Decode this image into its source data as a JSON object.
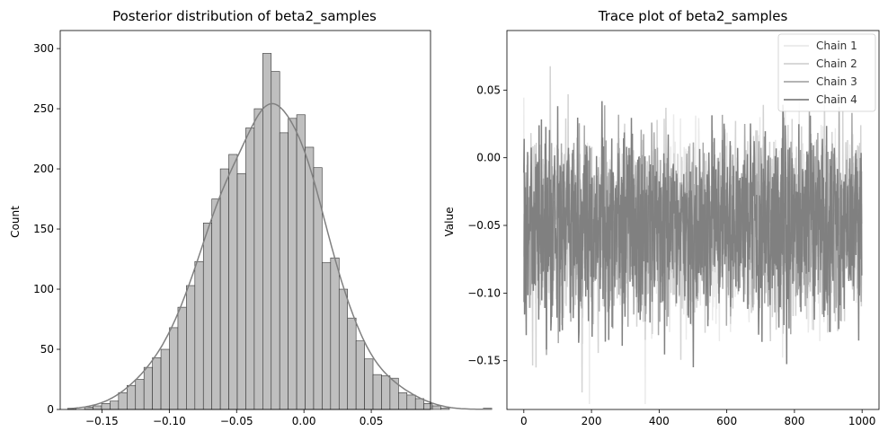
{
  "chart_data": [
    {
      "type": "bar",
      "title": "Posterior distribution of beta2_samples",
      "xlabel": "",
      "ylabel": "Count",
      "xlim": [
        -0.181,
        0.094
      ],
      "ylim": [
        0,
        315
      ],
      "xticks": [
        -0.15,
        -0.1,
        -0.05,
        0.0,
        0.05
      ],
      "xtick_labels": [
        "−0.15",
        "−0.10",
        "−0.05",
        "0.00",
        "0.05"
      ],
      "yticks": [
        0,
        50,
        100,
        150,
        200,
        250,
        300
      ],
      "ytick_labels": [
        "0",
        "50",
        "100",
        "150",
        "200",
        "250",
        "300"
      ],
      "bin_start": -0.1755,
      "bin_width": 0.0063,
      "values": [
        1,
        0,
        2,
        3,
        5,
        7,
        14,
        20,
        25,
        35,
        43,
        50,
        68,
        85,
        103,
        123,
        155,
        175,
        200,
        212,
        196,
        234,
        250,
        296,
        281,
        230,
        242,
        245,
        218,
        201,
        122,
        126,
        100,
        76,
        57,
        42,
        29,
        28,
        26,
        14,
        12,
        9,
        5,
        3,
        1,
        0,
        0,
        0,
        0,
        1
      ],
      "kde_color": "#808080",
      "bar_color": "#bfbfbf"
    },
    {
      "type": "line",
      "title": "Trace plot of beta2_samples",
      "xlabel": "",
      "ylabel": "Value",
      "xlim": [
        -50,
        1050
      ],
      "ylim": [
        -0.186,
        0.094
      ],
      "xticks": [
        0,
        200,
        400,
        600,
        800,
        1000
      ],
      "xtick_labels": [
        "0",
        "200",
        "400",
        "600",
        "800",
        "1000"
      ],
      "yticks": [
        -0.15,
        -0.1,
        -0.05,
        0.0,
        0.05
      ],
      "ytick_labels": [
        "−0.15",
        "−0.10",
        "−0.05",
        "0.00",
        "0.05"
      ],
      "legend_position": "top-right",
      "n_samples": 1000,
      "mean": -0.05,
      "std": 0.034,
      "series": [
        {
          "name": "Chain 1",
          "color": "#eaeaea"
        },
        {
          "name": "Chain 2",
          "color": "#d3d3d3"
        },
        {
          "name": "Chain 3",
          "color": "#a9a9a9"
        },
        {
          "name": "Chain 4",
          "color": "#808080"
        }
      ]
    }
  ]
}
